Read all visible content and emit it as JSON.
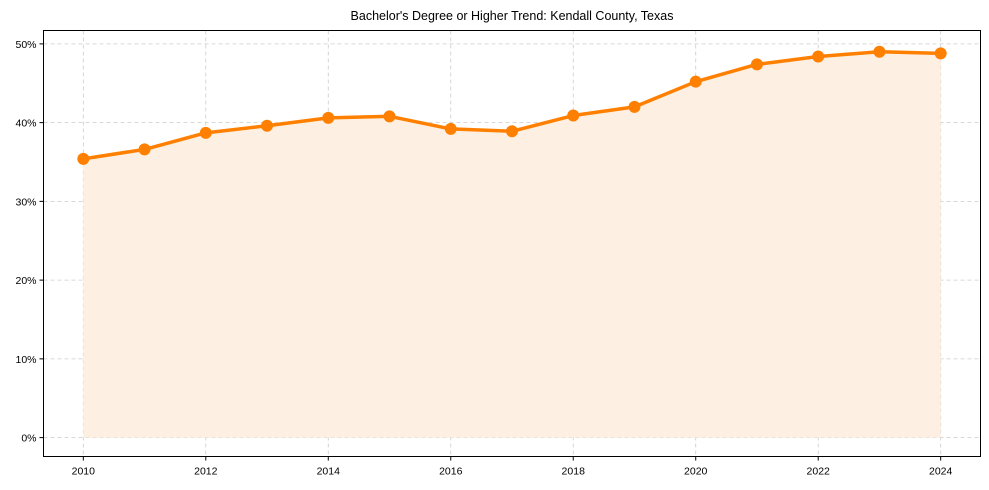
{
  "chart_data": {
    "type": "line",
    "title": "Bachelor's Degree or Higher Trend: Kendall County, Texas",
    "xlabel": "",
    "ylabel": "",
    "x": [
      2010,
      2011,
      2012,
      2013,
      2014,
      2015,
      2016,
      2017,
      2018,
      2019,
      2020,
      2021,
      2022,
      2023,
      2024
    ],
    "series": [
      {
        "name": "Bachelor's Degree or Higher",
        "values": [
          35.4,
          36.6,
          38.7,
          39.6,
          40.6,
          40.8,
          39.2,
          38.9,
          40.9,
          42.0,
          45.2,
          47.4,
          48.4,
          49.0,
          48.8
        ],
        "color": "#ff8000",
        "fill": "#fdf0e3",
        "marker": "circle"
      }
    ],
    "xticks": [
      "2010",
      "2012",
      "2014",
      "2016",
      "2018",
      "2020",
      "2022",
      "2024"
    ],
    "yticks": [
      "0%",
      "10%",
      "20%",
      "30%",
      "40%",
      "50%"
    ],
    "ylim": [
      -2.4,
      51.7
    ],
    "xlim": [
      2009.35,
      2024.65
    ],
    "grid": true,
    "area_fill": true,
    "legend": null
  }
}
